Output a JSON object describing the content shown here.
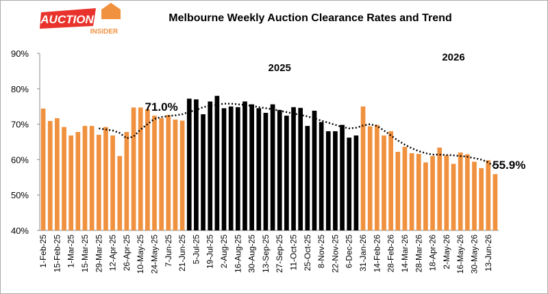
{
  "logo": {
    "top": "AUCTION",
    "bottom": "INSIDER"
  },
  "chart_data": {
    "type": "bar",
    "title": "Melbourne Weekly Auction Clearance Rates and Trend",
    "annotations": [
      {
        "text": "2025",
        "x": 34,
        "y": 85
      },
      {
        "text": "2026",
        "x": 59,
        "y": 88
      },
      {
        "text": "71.0%",
        "x": 17,
        "y": 73.8
      },
      {
        "text": "55.9%",
        "x": 67,
        "y": 57.4
      }
    ],
    "categories": [
      "1-Feb-25",
      null,
      "15-Feb-25",
      null,
      "1-Mar-25",
      null,
      "15-Mar-25",
      null,
      "29-Mar-25",
      null,
      "12-Apr-25",
      null,
      "26-Apr-25",
      null,
      "10-May-25",
      null,
      "24-May-25",
      null,
      "7-Jun-25",
      null,
      "21-Jun-25",
      null,
      "5-Jul-25",
      null,
      "19-Jul-25",
      null,
      "2-Aug-25",
      null,
      "16-Aug-25",
      null,
      "30-Aug-25",
      null,
      "13-Sep-25",
      null,
      "27-Sep-25",
      null,
      "11-Oct-25",
      null,
      "25-Oct-25",
      null,
      "8-Nov-25",
      null,
      "22-Nov-25",
      null,
      "6-Dec-25",
      null,
      "31-Jan-26",
      null,
      "14-Feb-26",
      null,
      "28-Feb-26",
      null,
      "14-Mar-26",
      null,
      "28-Mar-26",
      null,
      "18-Apr-26",
      null,
      "2-May-26",
      null,
      "16-May-26",
      null,
      "30-May-26",
      null,
      "13-Jun-26",
      null
    ],
    "series": [
      {
        "name": "Clearance rate",
        "values": [
          74.4,
          70.9,
          71.7,
          69.2,
          66.8,
          67.8,
          69.5,
          69.5,
          67.0,
          69.2,
          66.8,
          61.0,
          67.8,
          74.7,
          74.7,
          74.2,
          72.4,
          71.7,
          72.6,
          71.3,
          71.0,
          77.2,
          77.0,
          72.8,
          76.4,
          78.0,
          74.5,
          75.0,
          74.8,
          76.4,
          75.6,
          74.5,
          73.2,
          75.6,
          74.0,
          72.4,
          74.8,
          74.6,
          69.5,
          73.8,
          70.6,
          68.0,
          68.0,
          69.8,
          66.2,
          66.8,
          75.0,
          69.4,
          69.8,
          66.8,
          68.0,
          62.2,
          63.6,
          61.8,
          61.6,
          59.2,
          61.0,
          63.4,
          61.2,
          58.8,
          62.0,
          61.5,
          59.4,
          57.6,
          59.8,
          55.9
        ],
        "colors": [
          "#f0913f",
          "#f0913f",
          "#f0913f",
          "#f0913f",
          "#f0913f",
          "#f0913f",
          "#f0913f",
          "#f0913f",
          "#f0913f",
          "#f0913f",
          "#f0913f",
          "#f0913f",
          "#f0913f",
          "#f0913f",
          "#f0913f",
          "#f0913f",
          "#f0913f",
          "#f0913f",
          "#f0913f",
          "#f0913f",
          "#f0913f",
          "#000000",
          "#000000",
          "#000000",
          "#000000",
          "#000000",
          "#000000",
          "#000000",
          "#000000",
          "#000000",
          "#000000",
          "#000000",
          "#000000",
          "#000000",
          "#000000",
          "#000000",
          "#000000",
          "#000000",
          "#000000",
          "#000000",
          "#000000",
          "#000000",
          "#000000",
          "#000000",
          "#000000",
          "#000000",
          "#f0913f",
          "#f0913f",
          "#f0913f",
          "#f0913f",
          "#f0913f",
          "#f0913f",
          "#f0913f",
          "#f0913f",
          "#f0913f",
          "#f0913f",
          "#f0913f",
          "#f0913f",
          "#f0913f",
          "#f0913f",
          "#f0913f",
          "#f0913f",
          "#f0913f",
          "#f0913f",
          "#f0913f",
          "#f0913f"
        ]
      },
      {
        "name": "Trend",
        "type": "line",
        "color": "#000000",
        "values": [
          null,
          null,
          null,
          null,
          null,
          null,
          null,
          null,
          68.8,
          68.5,
          68.2,
          67.5,
          66.0,
          66.5,
          68.5,
          70.0,
          71.5,
          72.0,
          72.3,
          72.5,
          72.8,
          73.5,
          74.0,
          74.8,
          75.2,
          75.5,
          75.8,
          75.8,
          75.6,
          75.4,
          75.2,
          74.8,
          74.5,
          74.2,
          73.8,
          73.4,
          73.0,
          72.6,
          72.2,
          71.6,
          71.0,
          70.4,
          69.8,
          69.2,
          68.8,
          69.0,
          69.6,
          70.0,
          69.5,
          68.2,
          66.8,
          65.4,
          64.2,
          63.2,
          62.4,
          61.8,
          61.4,
          61.4,
          61.3,
          61.2,
          61.0,
          60.8,
          60.4,
          60.0,
          59.2,
          57.8
        ]
      }
    ],
    "ylim": [
      40,
      90
    ],
    "yticks": [
      {
        "value": 40,
        "label": "40%"
      },
      {
        "value": 50,
        "label": "50%"
      },
      {
        "value": 60,
        "label": "60%"
      },
      {
        "value": 70,
        "label": "70%"
      },
      {
        "value": 80,
        "label": "80%"
      },
      {
        "value": 90,
        "label": "90%"
      }
    ],
    "grid": false
  }
}
